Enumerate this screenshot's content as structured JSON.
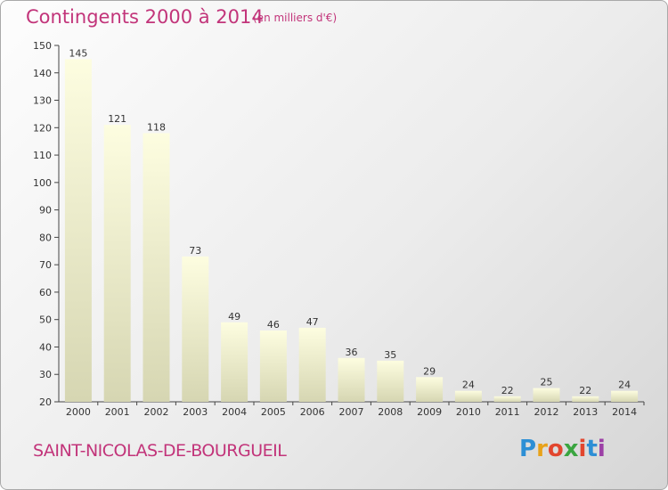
{
  "header": {
    "title": "Contingents 2000 à 2014",
    "subtitle": "(en milliers d'€)"
  },
  "footer": {
    "place": "SAINT-NICOLAS-DE-BOURGUEIL",
    "logo": "Proxiti"
  },
  "colors": {
    "accent": "#c2347a",
    "bar_top": "#fdfde0",
    "bar_bottom": "#d8d8b4"
  },
  "chart_data": {
    "type": "bar",
    "title": "Contingents 2000 à 2014",
    "subtitle": "(en milliers d'€)",
    "categories": [
      "2000",
      "2001",
      "2002",
      "2003",
      "2004",
      "2005",
      "2006",
      "2007",
      "2008",
      "2009",
      "2010",
      "2011",
      "2012",
      "2013",
      "2014"
    ],
    "values": [
      145,
      121,
      118,
      73,
      49,
      46,
      47,
      36,
      35,
      29,
      24,
      22,
      25,
      22,
      24
    ],
    "ylim": [
      20,
      150
    ],
    "yticks": [
      20,
      30,
      40,
      50,
      60,
      70,
      80,
      90,
      100,
      110,
      120,
      130,
      140,
      150
    ],
    "grid": false,
    "legend": "none"
  }
}
